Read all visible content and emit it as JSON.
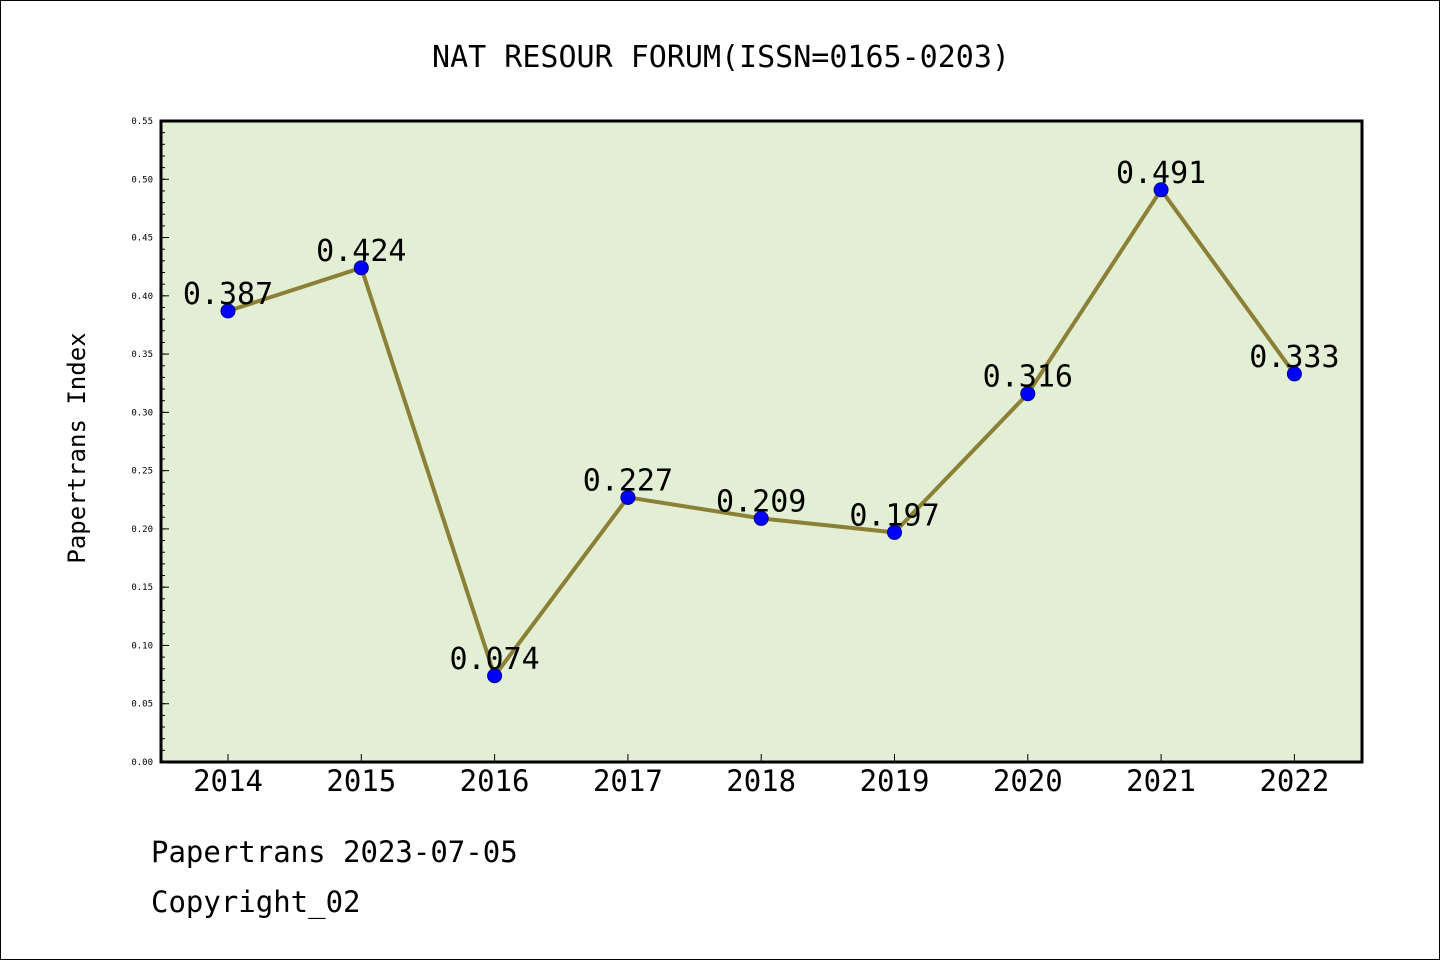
{
  "chart_data": {
    "type": "line",
    "title": "NAT RESOUR FORUM(ISSN=0165-0203)",
    "xlabel": "",
    "ylabel": "Papertrans Index",
    "categories": [
      "2014",
      "2015",
      "2016",
      "2017",
      "2018",
      "2019",
      "2020",
      "2021",
      "2022"
    ],
    "series": [
      {
        "values": [
          0.387,
          0.424,
          0.074,
          0.227,
          0.209,
          0.197,
          0.316,
          0.491,
          0.333
        ]
      }
    ],
    "data_labels": [
      "0.387",
      "0.424",
      "0.074",
      "0.227",
      "0.209",
      "0.197",
      "0.316",
      "0.491",
      "0.333"
    ],
    "ylim": [
      0.0,
      0.55
    ],
    "yticks": [
      "0.00",
      "0.05",
      "0.10",
      "0.15",
      "0.20",
      "0.25",
      "0.30",
      "0.35",
      "0.40",
      "0.45",
      "0.50",
      "0.55"
    ],
    "grid": false,
    "colors": {
      "plot_background": "#e2efd5",
      "line": "#8b8035",
      "marker": "#0000ff"
    }
  },
  "footer": {
    "line1": "Papertrans 2023-07-05",
    "line2": "Copyright_02"
  }
}
